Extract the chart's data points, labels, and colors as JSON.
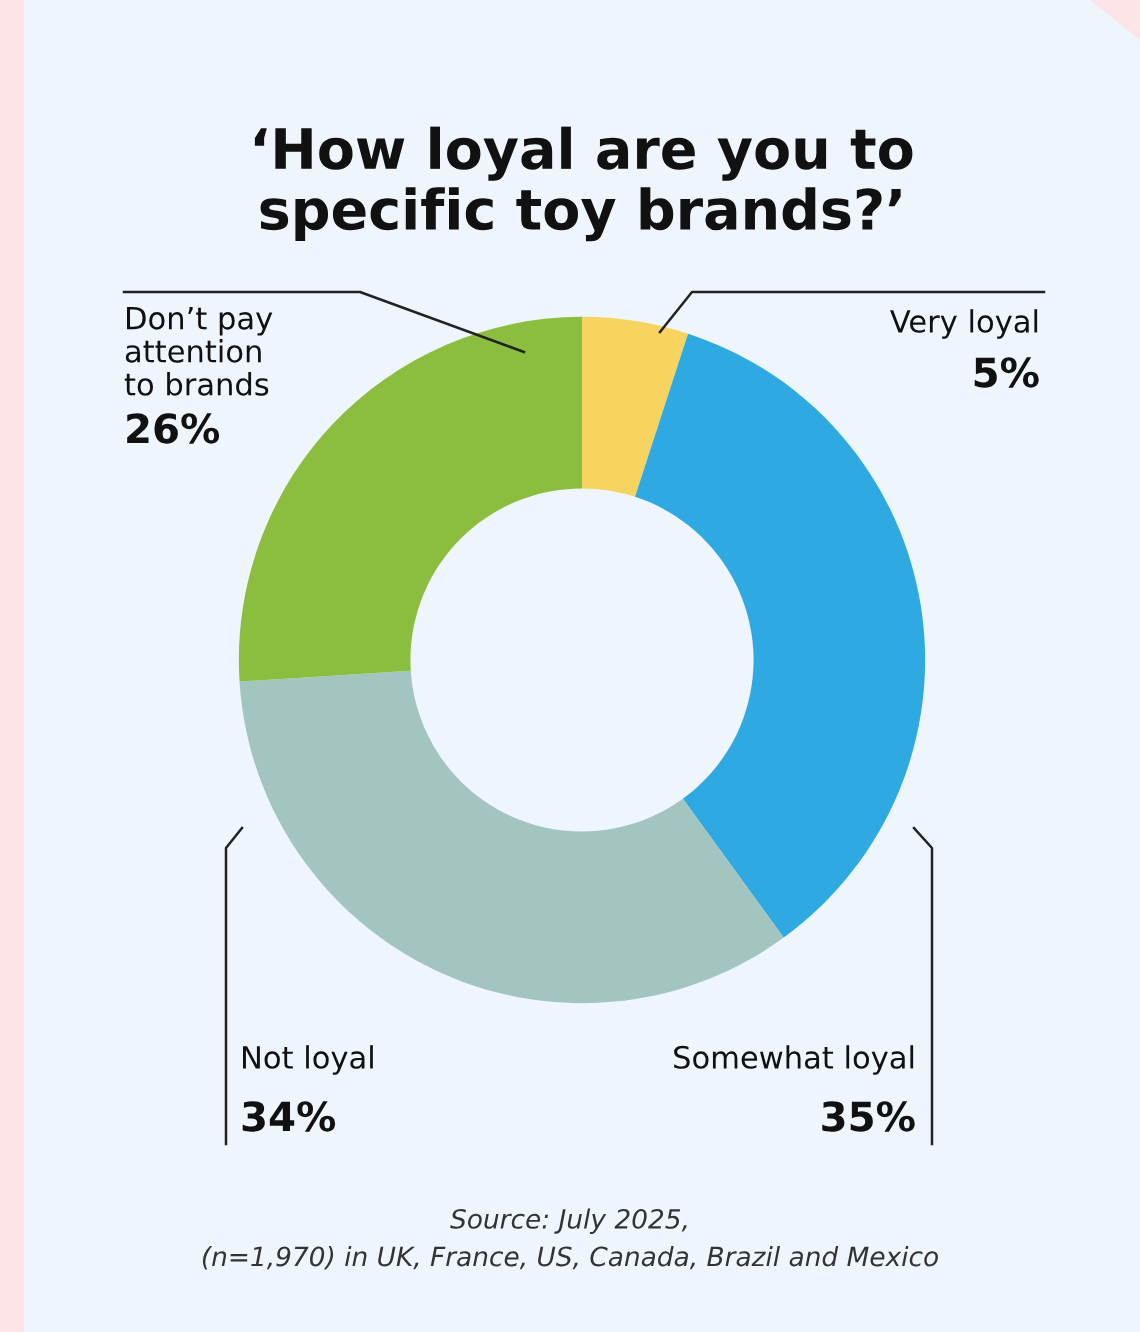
{
  "chart_data": {
    "type": "donut",
    "title": "‘How loyal are you to\nspecific toy brands?’",
    "categories": [
      "Very loyal",
      "Somewhat loyal",
      "Not loyal",
      "Don’t pay\nattention\nto brands"
    ],
    "values": [
      5,
      35,
      34,
      26
    ],
    "colors": [
      "#f7d460",
      "#2fa9e1",
      "#a3c5bf",
      "#8bbe3f"
    ],
    "value_labels": [
      "5%",
      "35%",
      "34%",
      "26%"
    ],
    "annotations": [
      "Source: July 2025,\n(n=1,970) in UK, France, US, Canada, Brazil and Mexico"
    ]
  }
}
